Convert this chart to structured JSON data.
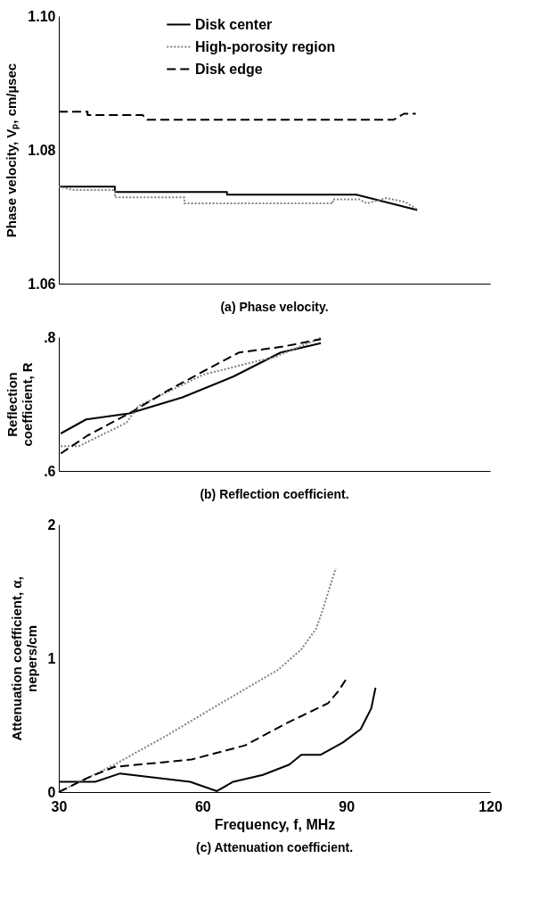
{
  "chart_data": [
    {
      "type": "line",
      "title": "(a) Phase velocity.",
      "ylabel": "Phase  velocity, Vₚ, cm/µsec",
      "xlim": [
        30,
        120
      ],
      "xticks": [
        30,
        60,
        90,
        120
      ],
      "ylim": [
        1.06,
        1.1
      ],
      "yticks": [
        1.06,
        1.08,
        {
          "value": 1.1,
          "label": "1.10"
        }
      ],
      "tick_labels": "y",
      "grid": false,
      "legend": "top",
      "marker": "none",
      "series": [
        {
          "name": "Disk center",
          "color": "#000000",
          "line_style": "solid",
          "x": [
            30,
            41.7,
            41.7,
            65.1,
            65.1,
            92.1,
            104.8
          ],
          "values": [
            1.0745,
            1.0745,
            1.0737,
            1.0737,
            1.0733,
            1.0733,
            1.071
          ]
        },
        {
          "name": "High-porosity region",
          "color": "#808080",
          "line_style": "dotted",
          "x": [
            30,
            33,
            41.7,
            41.7,
            56.2,
            56.2,
            87.2,
            87.2,
            92.7,
            94.3,
            98.3,
            102.3,
            104.8
          ],
          "values": [
            1.0745,
            1.074,
            1.074,
            1.0729,
            1.0729,
            1.072,
            1.072,
            1.0726,
            1.0726,
            1.072,
            1.0728,
            1.0722,
            1.0711
          ]
        },
        {
          "name": "Disk edge",
          "color": "#000000",
          "line_style": "dashed",
          "x": [
            30,
            36,
            36,
            47.5,
            48.4,
            99.9,
            102,
            104.5
          ],
          "values": [
            1.0857,
            1.0857,
            1.0852,
            1.0852,
            1.0845,
            1.0845,
            1.0854,
            1.0854
          ]
        }
      ]
    },
    {
      "type": "line",
      "title": "(b) Reflection coefficient.",
      "ylabel": "Reflection\ncoefficient, R",
      "xlim": [
        30,
        120
      ],
      "xticks": [
        30,
        60,
        90,
        120
      ],
      "ylim": [
        0.6,
        0.8
      ],
      "yticks": [
        {
          "value": 0.6,
          "label": ".6"
        },
        {
          "value": 0.8,
          "label": ".8"
        }
      ],
      "tick_labels": "y",
      "grid": false,
      "marker": "none",
      "series": [
        {
          "color": "#000000",
          "line_style": "solid",
          "x": [
            30.4,
            35.7,
            44.7,
            55.8,
            66.4,
            76.3,
            84.7
          ],
          "values": [
            0.656,
            0.677,
            0.686,
            0.71,
            0.741,
            0.777,
            0.791
          ]
        },
        {
          "color": "#808080",
          "line_style": "dotted",
          "x": [
            30.4,
            34.2,
            44.1,
            46.6,
            60.2,
            71.3,
            75,
            84.7
          ],
          "values": [
            0.637,
            0.637,
            0.672,
            0.697,
            0.744,
            0.764,
            0.77,
            0.799
          ]
        },
        {
          "color": "#000000",
          "line_style": "dashed",
          "x": [
            30.4,
            36,
            44.7,
            52.7,
            60.2,
            67.6,
            76.9,
            84.7
          ],
          "values": [
            0.626,
            0.653,
            0.686,
            0.72,
            0.749,
            0.777,
            0.786,
            0.797
          ]
        }
      ]
    },
    {
      "type": "line",
      "title": "(c) Attenuation coefficient.",
      "xlabel": "Frequency, f, MHz",
      "ylabel": "Attenuation coefficient, α,\nnepers/cm",
      "xlim": [
        30,
        120
      ],
      "xticks": [
        30,
        60,
        90,
        120
      ],
      "ylim": [
        0,
        2
      ],
      "yticks": [
        0,
        1,
        2
      ],
      "grid": false,
      "marker": "none",
      "series": [
        {
          "color": "#000000",
          "line_style": "solid",
          "x": [
            30,
            37.6,
            42.8,
            57.4,
            63,
            66.4,
            72.6,
            78.1,
            80.6,
            84.6,
            89.3,
            93,
            95.2,
            96.1
          ],
          "values": [
            0.077,
            0.077,
            0.139,
            0.077,
            0.007,
            0.077,
            0.128,
            0.205,
            0.278,
            0.278,
            0.371,
            0.47,
            0.625,
            0.78
          ]
        },
        {
          "color": "#808080",
          "line_style": "dotted",
          "x": [
            30,
            36,
            41.6,
            52.7,
            65.1,
            75.7,
            80.6,
            83.7,
            85,
            87.8
          ],
          "values": [
            0,
            0.106,
            0.205,
            0.426,
            0.691,
            0.912,
            1.066,
            1.221,
            1.353,
            1.673
          ]
        },
        {
          "color": "#000000",
          "line_style": "dashed",
          "x": [
            30,
            36,
            41.6,
            57.7,
            68.9,
            77.5,
            86.2,
            88.4,
            90.2
          ],
          "values": [
            0,
            0.106,
            0.188,
            0.243,
            0.349,
            0.514,
            0.664,
            0.757,
            0.857
          ]
        }
      ]
    }
  ]
}
